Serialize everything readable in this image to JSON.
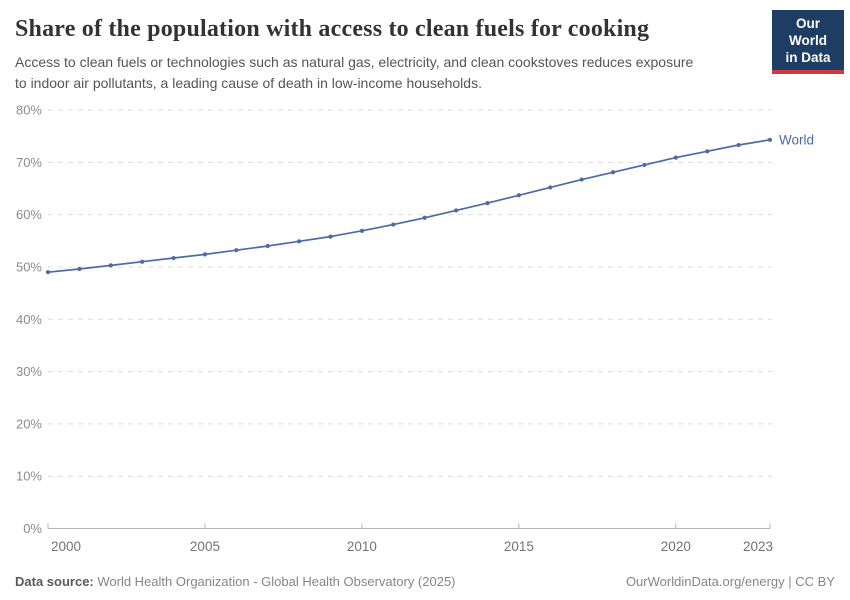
{
  "header": {
    "title": "Share of the population with access to clean fuels for cooking",
    "subtitle_lines": [
      "Access to clean fuels or technologies such as natural gas, electricity, and clean cookstoves reduces exposure",
      "to indoor air pollutants, a leading cause of death in low-income households."
    ]
  },
  "logo": {
    "line1": "Our World",
    "line2": "in Data"
  },
  "chart_data": {
    "type": "line",
    "title": "Share of the population with access to clean fuels for cooking",
    "x": [
      2000,
      2001,
      2002,
      2003,
      2004,
      2005,
      2006,
      2007,
      2008,
      2009,
      2010,
      2011,
      2012,
      2013,
      2014,
      2015,
      2016,
      2017,
      2018,
      2019,
      2020,
      2021,
      2022,
      2023
    ],
    "series": [
      {
        "name": "World",
        "values": [
          49.0,
          49.6,
          50.3,
          51.0,
          51.7,
          52.4,
          53.2,
          54.0,
          54.9,
          55.8,
          56.9,
          58.1,
          59.4,
          60.8,
          62.2,
          63.7,
          65.2,
          66.7,
          68.1,
          69.5,
          70.9,
          72.1,
          73.3,
          74.3
        ],
        "color": "#4c6ba5"
      }
    ],
    "xlabel": "",
    "ylabel": "",
    "ylim": [
      0,
      80
    ],
    "yticks": [
      0,
      10,
      20,
      30,
      40,
      50,
      60,
      70,
      80
    ],
    "ytick_suffix": "%",
    "xticks": [
      2000,
      2005,
      2010,
      2015,
      2020,
      2023
    ],
    "grid": "horizontal-dashed",
    "legend_position": "end-of-line-label",
    "end_label": "World"
  },
  "footer": {
    "source_label": "Data source:",
    "source_text": " World Health Organization - Global Health Observatory (2025)",
    "credit": "OurWorldinData.org/energy | CC BY"
  },
  "colors": {
    "line": "#4c6ba5",
    "grid": "#dcdcdc",
    "axis": "#b5b5b5",
    "ytick_label": "#8b8b8b",
    "xtick_label": "#737373",
    "logo_bg": "#1d3d63",
    "logo_red": "#cf3a41"
  }
}
